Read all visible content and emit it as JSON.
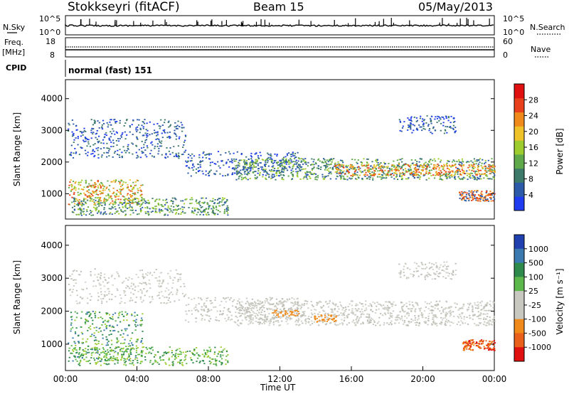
{
  "header": {
    "station": "Stokkseyri (fitACF)",
    "beam": "Beam 15",
    "date": "05/May/2013"
  },
  "sky_panel": {
    "left_label": "N.Sky",
    "left_ticks": [
      "10^5",
      "10^0"
    ],
    "right_ticks": [
      "10^5",
      "10^0"
    ],
    "right_label": "N.Search"
  },
  "freq_panel": {
    "left_label_1": "Freq.",
    "left_label_2": "[MHz]",
    "left_ticks": [
      "18",
      "8"
    ],
    "right_ticks": [
      "60",
      "0"
    ],
    "right_label": "Nave"
  },
  "cpid_panel": {
    "label": "CPID",
    "text": "normal (fast) 151"
  },
  "chart_data": [
    {
      "type": "heatmap",
      "name": "power-panel",
      "ylabel": "Slant Range [km]",
      "y_ticks": [
        "1000",
        "2000",
        "3000",
        "4000"
      ],
      "ylim": [
        200,
        4600
      ],
      "colorbar_label": "Power [dB]",
      "colorbar_ticks": [
        "4",
        "8",
        "12",
        "16",
        "20",
        "24",
        "28"
      ],
      "colorbar_colors": [
        "#1f3cf0",
        "#2c5aa8",
        "#3d7a6a",
        "#5fa94a",
        "#9ccc2e",
        "#f0c22a",
        "#f08a1a",
        "#e8401a",
        "#e01010"
      ]
    },
    {
      "type": "heatmap",
      "name": "velocity-panel",
      "ylabel": "Slant Range [km]",
      "y_ticks": [
        "1000",
        "2000",
        "3000",
        "4000"
      ],
      "ylim": [
        200,
        4600
      ],
      "colorbar_label": "Velocity [m s⁻¹]",
      "colorbar_ticks": [
        "1000",
        "500",
        "100",
        "25",
        "-25",
        "-100",
        "-500",
        "-1000"
      ],
      "colorbar_colors": [
        "#2040b0",
        "#3a7ab0",
        "#2e8a4a",
        "#5cb84a",
        "#c8c8c0",
        "#c8c8c0",
        "#f08a1a",
        "#e8601a",
        "#e01010"
      ]
    }
  ],
  "time_axis": {
    "labels": [
      "00:00",
      "04:00",
      "08:00",
      "12:00",
      "16:00",
      "20:00",
      "00:00"
    ],
    "xlabel": "Time UT"
  }
}
